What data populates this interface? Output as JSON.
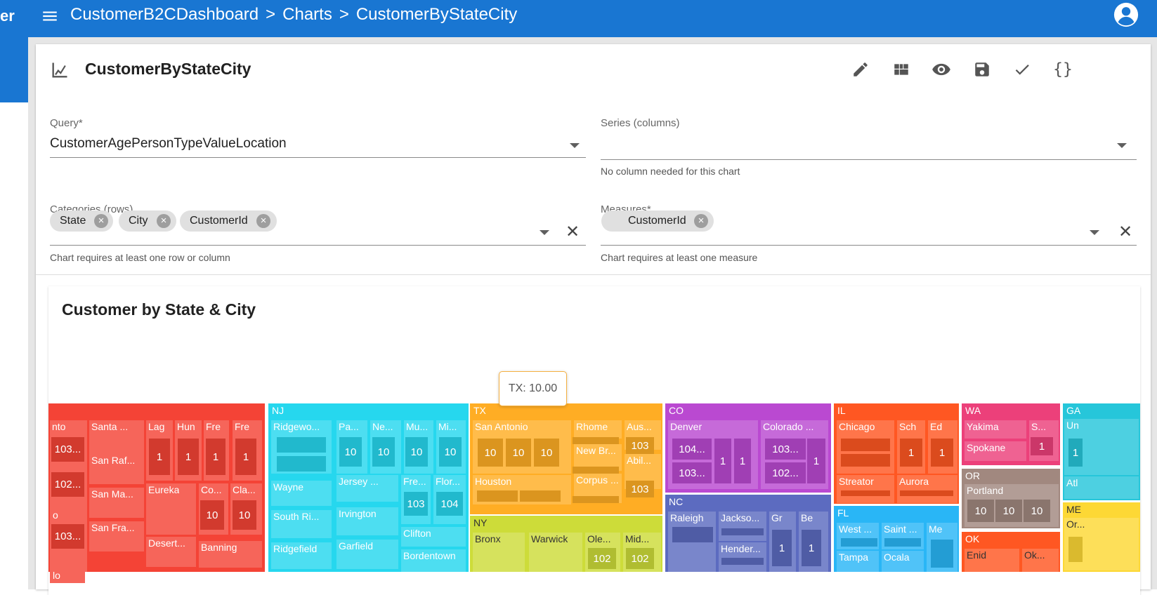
{
  "nav": {
    "left_fragment": "er",
    "crumbs": [
      "CustomerB2CDashboard",
      "Charts",
      "CustomerByStateCity"
    ],
    "separator": ">"
  },
  "card": {
    "title": "CustomerByStateCity",
    "toolbar": [
      "edit-icon",
      "dashboard-icon",
      "preview-icon",
      "save-icon",
      "check-icon",
      "json-icon"
    ],
    "toolbar_glyphs": {
      "json": "{}"
    }
  },
  "form": {
    "query": {
      "label": "Query*",
      "value": "CustomerAgePersonTypeValueLocation"
    },
    "series": {
      "label": "Series (columns)",
      "value": "",
      "hint": "No column needed for this chart"
    },
    "categories": {
      "label": "Categories (rows)",
      "chips": [
        "State",
        "City",
        "CustomerId"
      ],
      "hint": "Chart requires at least one row or column"
    },
    "measures": {
      "label": "Measures*",
      "chips": [
        "CustomerId"
      ],
      "hint": "Chart requires at least one measure"
    }
  },
  "chart": {
    "title": "Customer by State & City",
    "tooltip": "TX: 10.00"
  },
  "chart_data": {
    "type": "treemap",
    "title": "Customer by State & City",
    "measure": "CustomerId",
    "hierarchy": [
      "State",
      "City",
      "CustomerId"
    ],
    "tooltip": "TX: 10.00",
    "states": [
      {
        "name": "",
        "color": "#f44336",
        "cities": [
          "nto",
          "Santa ...",
          "Lag",
          "Hun",
          "Fre",
          "Fre",
          "San Raf...",
          "San Ma...",
          "Eureka",
          "Co...",
          "Cla...",
          "San Fra...",
          "Desert...",
          "Banning",
          "o",
          "lo"
        ],
        "values": [
          "103...",
          "102...",
          "103...",
          "1",
          "1",
          "1",
          "1",
          "10",
          "10"
        ]
      },
      {
        "name": "NJ",
        "color": "#26d7ee",
        "cities": [
          "Ridgewo...",
          "Pa...",
          "Ne...",
          "Mu...",
          "Mi...",
          "Wayne",
          "Jersey ...",
          "Fre...",
          "Flor...",
          "South Ri...",
          "Irvington",
          "Clifton",
          "Ridgefield",
          "Garfield",
          "Bordentown"
        ],
        "values": [
          "10",
          "10",
          "10",
          "10",
          "103",
          "104"
        ]
      },
      {
        "name": "TX",
        "color": "#ffad24",
        "cities": [
          "San Antonio",
          "Rhome",
          "Aus...",
          "New Br...",
          "Abil...",
          "Houston",
          "Corpus ..."
        ],
        "values": [
          "10",
          "10",
          "10",
          "103",
          "103"
        ]
      },
      {
        "name": "NY",
        "color": "#cddc39",
        "cities": [
          "Bronx",
          "Warwick",
          "Ole...",
          "Mid..."
        ],
        "values": [
          "102",
          "102"
        ]
      },
      {
        "name": "CO",
        "color": "#ba49d1",
        "cities": [
          "Denver",
          "Colorado ..."
        ],
        "values": [
          "104...",
          "103...",
          "1",
          "1",
          "103...",
          "102...",
          "1"
        ]
      },
      {
        "name": "NC",
        "color": "#5c6bc0",
        "cities": [
          "Raleigh",
          "Jackso...",
          "Gr",
          "Be",
          "Hender..."
        ],
        "values": [
          "1",
          "1"
        ]
      },
      {
        "name": "IL",
        "color": "#ff5722",
        "cities": [
          "Chicago",
          "Sch",
          "Ed",
          "Streator",
          "Aurora"
        ],
        "values": [
          "1",
          "1"
        ]
      },
      {
        "name": "FL",
        "color": "#29b6f6",
        "cities": [
          "West ...",
          "Saint ...",
          "Me",
          "Tampa",
          "Ocala"
        ],
        "values": []
      },
      {
        "name": "WA",
        "color": "#ec407a",
        "cities": [
          "Yakima",
          "S...",
          "Spokane"
        ],
        "values": [
          "1"
        ]
      },
      {
        "name": "OR",
        "color": "#a1887f",
        "cities": [
          "Portland"
        ],
        "values": [
          "10",
          "10",
          "10"
        ]
      },
      {
        "name": "OK",
        "color": "#ff5722",
        "cities": [
          "Enid",
          "Ok..."
        ],
        "values": []
      },
      {
        "name": "GA",
        "color": "#26c6da",
        "cities": [
          "Un",
          "Atl"
        ],
        "values": [
          "1"
        ]
      },
      {
        "name": "ME",
        "color": "#fdd835",
        "cities": [
          "Or..."
        ],
        "values": []
      }
    ]
  }
}
